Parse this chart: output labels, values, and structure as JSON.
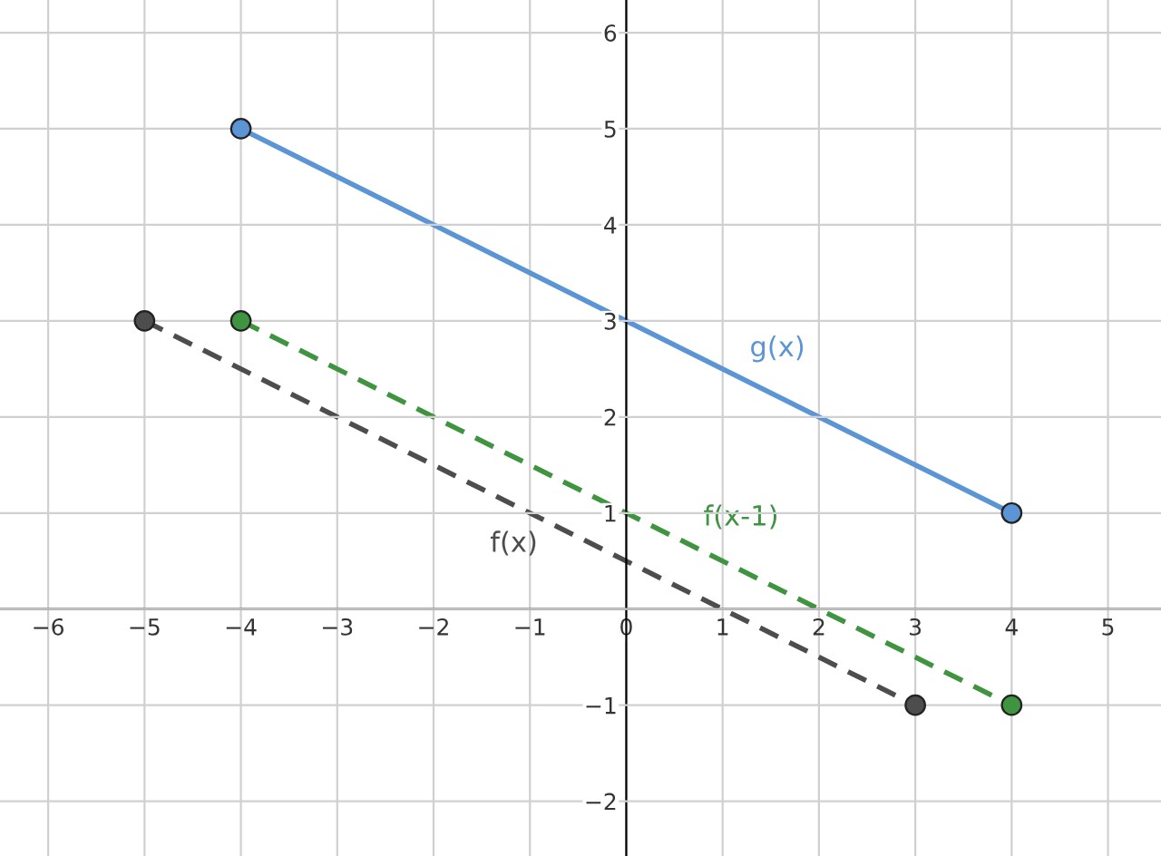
{
  "chart_data": {
    "type": "line",
    "x": [
      -4,
      4
    ],
    "series": [
      {
        "name": "g(x)",
        "color": "#5b95d6",
        "values": [
          5,
          1
        ],
        "line_style": "solid"
      },
      {
        "name": "f(x-1)",
        "color": "#3f9440",
        "values": [
          3,
          -1
        ],
        "line_style": "dashed"
      },
      {
        "name": "f(x)",
        "x": [
          -5,
          3
        ],
        "color": "#4d4d4d",
        "values": [
          3,
          -1
        ],
        "line_style": "dashed"
      }
    ],
    "marker": "circle",
    "grid": true,
    "xlim": [
      -6.5,
      5.55
    ],
    "ylim": [
      -2.57,
      6.34
    ],
    "xticks": [
      -6,
      -5,
      -4,
      -3,
      -2,
      -1,
      0,
      1,
      2,
      3,
      4,
      5
    ],
    "yticks": [
      -2,
      -1,
      {
        "value": 0,
        "label": null
      },
      1,
      2,
      3,
      4,
      5,
      6
    ]
  }
}
